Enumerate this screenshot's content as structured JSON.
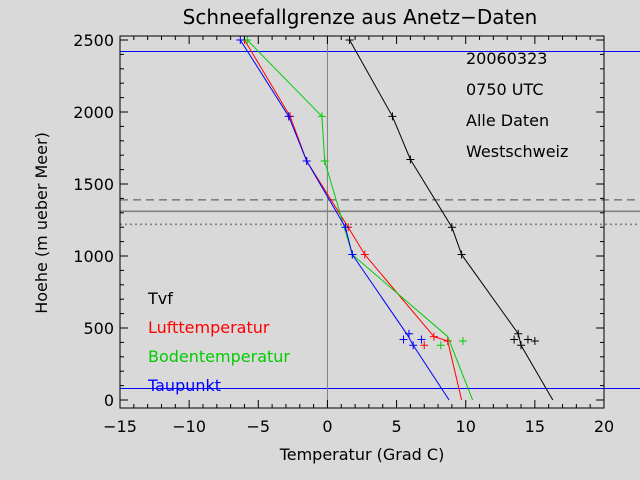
{
  "chart_data": {
    "type": "line",
    "title": "Schneefallgrenze aus Anetz−Daten",
    "xlabel": "Temperatur (Grad C)",
    "ylabel": "Hoehe (m ueber Meer)",
    "xlim": [
      -15,
      20
    ],
    "ylim": [
      0,
      2500
    ],
    "xticks": [
      -15,
      -10,
      -5,
      0,
      5,
      10,
      15,
      20
    ],
    "xtick_labels": [
      "−15",
      "−10",
      "−5",
      "0",
      "5",
      "10",
      "15",
      "20"
    ],
    "yticks": [
      0,
      500,
      1000,
      1500,
      2000,
      2500
    ],
    "ytick_labels": [
      "0",
      "500",
      "1000",
      "1500",
      "2000",
      "2500"
    ],
    "grid": false,
    "info_lines": [
      "20060323",
      "0750 UTC",
      "Alle Daten",
      "Westschweiz"
    ],
    "legend_placement": "bottom-left",
    "legend": [
      {
        "label": "Tvf",
        "color": "#000000"
      },
      {
        "label": "Lufttemperatur",
        "color": "#ff0000"
      },
      {
        "label": "Bodentemperatur",
        "color": "#00cc00"
      },
      {
        "label": "Taupunkt",
        "color": "#0000ff"
      }
    ],
    "series": [
      {
        "name": "Tvf",
        "color": "#000000",
        "line": [
          [
            16.3,
            0
          ],
          [
            14.0,
            380
          ],
          [
            13.8,
            460
          ],
          [
            9.7,
            1010
          ],
          [
            9.0,
            1200
          ],
          [
            6.0,
            1670
          ],
          [
            4.7,
            1970
          ],
          [
            1.6,
            2500
          ]
        ],
        "markers": [
          [
            14.0,
            380
          ],
          [
            13.5,
            420
          ],
          [
            14.5,
            420
          ],
          [
            15.0,
            410
          ],
          [
            13.8,
            460
          ],
          [
            9.7,
            1010
          ],
          [
            9.0,
            1200
          ],
          [
            6.0,
            1670
          ],
          [
            4.7,
            1970
          ],
          [
            1.6,
            2500
          ]
        ]
      },
      {
        "name": "Lufttemperatur",
        "color": "#ff0000",
        "line": [
          [
            9.7,
            0
          ],
          [
            8.7,
            410
          ],
          [
            7.7,
            440
          ],
          [
            2.7,
            1010
          ],
          [
            1.5,
            1200
          ],
          [
            -1.5,
            1660
          ],
          [
            -2.7,
            1970
          ],
          [
            -6.0,
            2500
          ]
        ],
        "markers": [
          [
            7.0,
            380
          ],
          [
            8.7,
            410
          ],
          [
            7.7,
            440
          ],
          [
            2.7,
            1010
          ],
          [
            1.5,
            1200
          ],
          [
            -1.5,
            1660
          ],
          [
            -2.7,
            1970
          ],
          [
            -6.0,
            2500
          ]
        ]
      },
      {
        "name": "Bodentemperatur",
        "color": "#00cc00",
        "line": [
          [
            10.5,
            0
          ],
          [
            8.7,
            440
          ],
          [
            1.8,
            1010
          ],
          [
            -0.2,
            1660
          ],
          [
            -0.4,
            1970
          ],
          [
            -5.8,
            2500
          ]
        ],
        "markers": [
          [
            8.2,
            380
          ],
          [
            9.8,
            410
          ],
          [
            1.8,
            1010
          ],
          [
            -0.2,
            1660
          ],
          [
            -0.4,
            1970
          ],
          [
            -5.8,
            2500
          ]
        ]
      },
      {
        "name": "Taupunkt",
        "color": "#0000ff",
        "line": [
          [
            8.8,
            0
          ],
          [
            6.2,
            380
          ],
          [
            5.8,
            450
          ],
          [
            1.8,
            1010
          ],
          [
            1.3,
            1200
          ],
          [
            -1.5,
            1660
          ],
          [
            -2.8,
            1970
          ],
          [
            -6.3,
            2500
          ]
        ],
        "markers": [
          [
            6.2,
            380
          ],
          [
            5.5,
            420
          ],
          [
            6.8,
            420
          ],
          [
            5.9,
            460
          ],
          [
            1.8,
            1010
          ],
          [
            1.3,
            1200
          ],
          [
            -1.5,
            1660
          ],
          [
            -2.8,
            1970
          ],
          [
            -6.3,
            2500
          ]
        ]
      }
    ],
    "reference_lines": [
      {
        "orientation": "horizontal",
        "value": 2420,
        "style": "solid",
        "color": "#0000ff"
      },
      {
        "orientation": "horizontal",
        "value": 80,
        "style": "solid",
        "color": "#0000ff"
      },
      {
        "orientation": "horizontal",
        "value": 1390,
        "style": "dashed",
        "color": "#808080"
      },
      {
        "orientation": "horizontal",
        "value": 1310,
        "style": "solid",
        "color": "#808080"
      },
      {
        "orientation": "horizontal",
        "value": 1220,
        "style": "dotted",
        "color": "#808080"
      },
      {
        "orientation": "vertical",
        "value": 0,
        "style": "solid",
        "color": "#808080"
      }
    ]
  }
}
